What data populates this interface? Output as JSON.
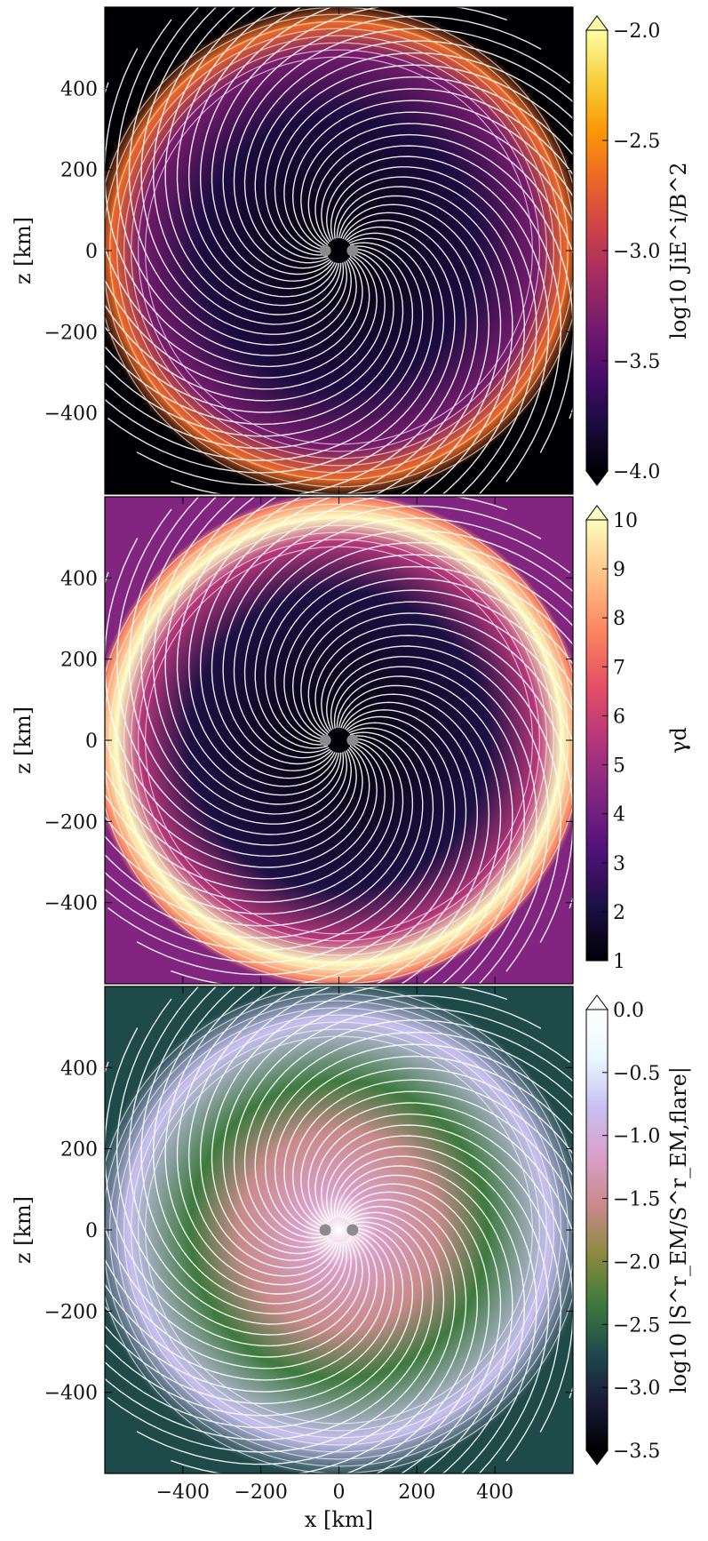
{
  "chart_data": [
    {
      "type": "heatmap",
      "panel": "top",
      "ylabel": "z [km]",
      "xlim": [
        -600,
        600
      ],
      "ylim": [
        -600,
        600
      ],
      "yticks": [
        400,
        200,
        0,
        -200,
        -400
      ],
      "ytick_labels": [
        "400",
        "200",
        "0",
        "−200",
        "−400"
      ],
      "colormap": "inferno",
      "colorbar": {
        "label": "log10 JiE^i/B^2",
        "ticks": [
          -2.0,
          -2.5,
          -3.0,
          -3.5,
          -4.0
        ],
        "tick_labels": [
          "−2.0",
          "−2.5",
          "−3.0",
          "−3.5",
          "−4.0"
        ],
        "range": [
          -4.0,
          -2.0
        ],
        "colors": [
          "#000004",
          "#1b0c41",
          "#4a0c6b",
          "#781c6d",
          "#a52c60",
          "#cf4446",
          "#ed6925",
          "#fb9b06",
          "#f7d13d",
          "#fcffa4"
        ]
      },
      "streamlines": true,
      "markers": [
        {
          "x": -35,
          "z": 0
        },
        {
          "x": 35,
          "z": 0
        }
      ]
    },
    {
      "type": "heatmap",
      "panel": "middle",
      "ylabel": "z [km]",
      "xlim": [
        -600,
        600
      ],
      "ylim": [
        -600,
        600
      ],
      "yticks": [
        400,
        200,
        0,
        -200,
        -400
      ],
      "ytick_labels": [
        "400",
        "200",
        "0",
        "−200",
        "−400"
      ],
      "colormap": "magma",
      "colorbar": {
        "label": "γd",
        "ticks": [
          10,
          9,
          8,
          7,
          6,
          5,
          4,
          3,
          2,
          1
        ],
        "tick_labels": [
          "10",
          "9",
          "8",
          "7",
          "6",
          "5",
          "4",
          "3",
          "2",
          "1"
        ],
        "range": [
          1,
          10
        ],
        "colors": [
          "#000004",
          "#1c1044",
          "#4f127b",
          "#812581",
          "#b5367a",
          "#e55064",
          "#fb8761",
          "#fec287",
          "#fcfdbf"
        ]
      },
      "streamlines": true,
      "markers": [
        {
          "x": -35,
          "z": 0
        },
        {
          "x": 35,
          "z": 0
        }
      ]
    },
    {
      "type": "heatmap",
      "panel": "bottom",
      "xlabel": "x [km]",
      "ylabel": "z [km]",
      "xlim": [
        -600,
        600
      ],
      "ylim": [
        -600,
        600
      ],
      "xticks": [
        -400,
        -200,
        0,
        200,
        400
      ],
      "xtick_labels": [
        "−400",
        "−200",
        "0",
        "200",
        "400"
      ],
      "yticks": [
        400,
        200,
        0,
        -200,
        -400
      ],
      "ytick_labels": [
        "400",
        "200",
        "0",
        "−200",
        "−400"
      ],
      "colormap": "cubehelix-like",
      "colorbar": {
        "label": "log10 |S^r_EM/S^r_EM,flare|",
        "ticks": [
          0.0,
          -0.5,
          -1.0,
          -1.5,
          -2.0,
          -2.5,
          -3.0,
          -3.5
        ],
        "tick_labels": [
          "0.0",
          "−0.5",
          "−1.0",
          "−1.5",
          "−2.0",
          "−2.5",
          "−3.0",
          "−3.5"
        ],
        "range": [
          -3.5,
          0.0
        ],
        "colors": [
          "#000000",
          "#1a1a3a",
          "#1f4a4a",
          "#3d7a3d",
          "#8a8a40",
          "#c88a8a",
          "#d9a0c8",
          "#c8c0f0",
          "#e8f8ff",
          "#ffffff"
        ]
      },
      "streamlines": true,
      "markers": [
        {
          "x": -35,
          "z": 0
        },
        {
          "x": 35,
          "z": 0
        }
      ]
    }
  ]
}
